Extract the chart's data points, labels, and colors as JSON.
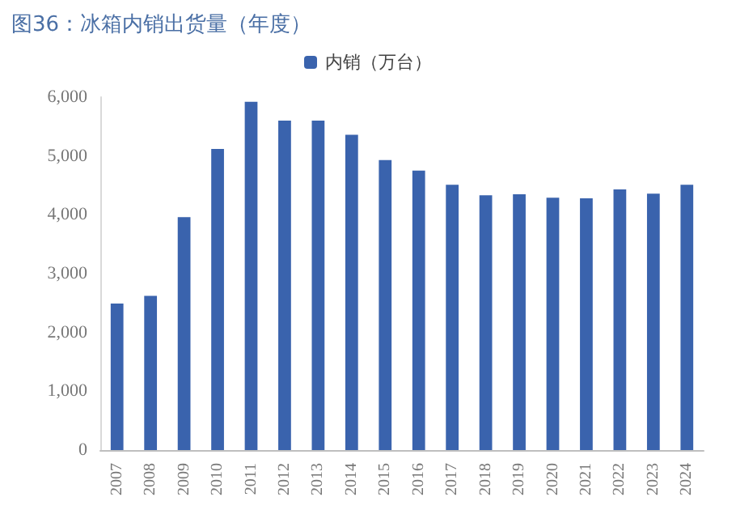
{
  "chart_data": {
    "type": "bar",
    "title": "图36：冰箱内销出货量（年度）",
    "categories": [
      "2007",
      "2008",
      "2009",
      "2010",
      "2011",
      "2012",
      "2013",
      "2014",
      "2015",
      "2016",
      "2017",
      "2018",
      "2019",
      "2020",
      "2021",
      "2022",
      "2023",
      "2024"
    ],
    "series": [
      {
        "name": "内销（万台）",
        "color": "#3a63ad",
        "values": [
          2490,
          2620,
          3960,
          5120,
          5920,
          5600,
          5600,
          5360,
          4930,
          4750,
          4510,
          4330,
          4350,
          4290,
          4280,
          4430,
          4360,
          4510
        ]
      }
    ],
    "ylim": [
      0,
      6000
    ],
    "yticks": [
      0,
      {
        "value": 1000,
        "label": "1,000"
      },
      {
        "value": 2000,
        "label": "2,000"
      },
      {
        "value": 3000,
        "label": "3,000"
      },
      {
        "value": 4000,
        "label": "4,000"
      },
      {
        "value": 5000,
        "label": "5,000"
      },
      {
        "value": 6000,
        "label": "6,000"
      }
    ],
    "grid": false,
    "legend": "top"
  }
}
